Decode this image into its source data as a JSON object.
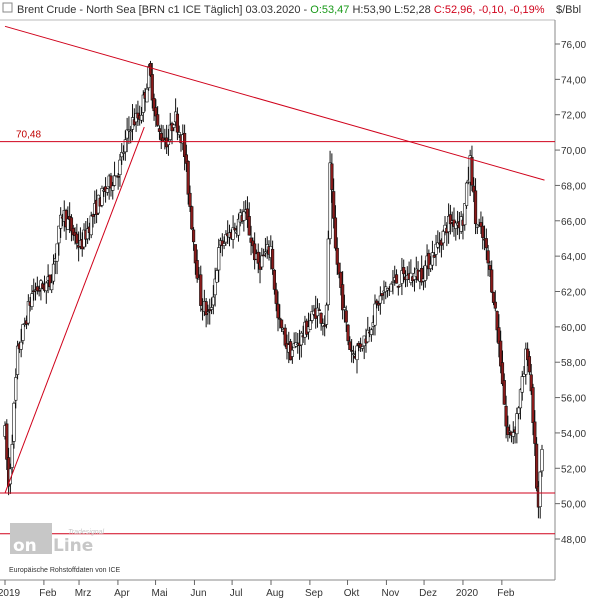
{
  "header": {
    "instrument": "Brent Crude - North Sea [BRN c1 ICE  Täglich] 03.03.2020",
    "open": "O:53,47",
    "high": "H:53,90",
    "low": "L:52,28",
    "close": "C:52,96",
    "change": "-0,10",
    "change_pct": "-0,19%",
    "unit": "$/Bbl"
  },
  "source_note": "Europäische Rohstoffdaten von ICE",
  "watermark": {
    "brand_on": "on",
    "brand_line": "Line",
    "brand_top": "Tradesignal"
  },
  "colors": {
    "up": "#ffffff",
    "down": "#8b1a1a",
    "line": "#d0021b",
    "candle_edge": "#111111",
    "grid": "#e6e6e6"
  },
  "chart_data": {
    "type": "candlestick",
    "title": "Brent Crude - North Sea",
    "x_labels": [
      "2019",
      "Feb",
      "Mrz",
      "Apr",
      "Mai",
      "Jun",
      "Jul",
      "Aug",
      "Sep",
      "Okt",
      "Nov",
      "Dez",
      "2020",
      "Feb"
    ],
    "x_label_days": [
      0,
      31,
      59,
      90,
      120,
      151,
      181,
      212,
      243,
      273,
      304,
      334,
      365,
      396
    ],
    "y_ticks": [
      "76,00",
      "74,00",
      "72,00",
      "70,00",
      "68,00",
      "66,00",
      "64,00",
      "62,00",
      "60,00",
      "58,00",
      "56,00",
      "54,00",
      "52,00",
      "50,00",
      "48,00"
    ],
    "ylim": [
      46.9,
      77.2
    ],
    "grid": false,
    "horizontal_levels": [
      {
        "label": "70,48",
        "value": 70.48
      },
      {
        "label": "",
        "value": 50.6
      },
      {
        "label": "",
        "value": 48.3
      }
    ],
    "trendlines": [
      {
        "from": [
          "2018-12-31",
          77.0
        ],
        "to": [
          "2020-03-05",
          68.3
        ]
      },
      {
        "from": [
          "2018-12-31",
          50.6
        ],
        "to": [
          "2019-04-21",
          71.3
        ]
      }
    ],
    "price_anchors": [
      [
        "2018-12-31",
        54.0
      ],
      [
        "2019-01-03",
        50.8
      ],
      [
        "2019-01-10",
        58.5
      ],
      [
        "2019-01-22",
        62.0
      ],
      [
        "2019-02-05",
        62.5
      ],
      [
        "2019-02-15",
        66.5
      ],
      [
        "2019-03-01",
        64.5
      ],
      [
        "2019-03-15",
        67.0
      ],
      [
        "2019-04-01",
        69.0
      ],
      [
        "2019-04-10",
        71.5
      ],
      [
        "2019-04-18",
        72.0
      ],
      [
        "2019-04-25",
        74.5
      ],
      [
        "2019-05-02",
        71.0
      ],
      [
        "2019-05-10",
        70.5
      ],
      [
        "2019-05-15",
        72.0
      ],
      [
        "2019-05-22",
        70.5
      ],
      [
        "2019-05-31",
        64.5
      ],
      [
        "2019-06-05",
        61.5
      ],
      [
        "2019-06-12",
        60.5
      ],
      [
        "2019-06-20",
        64.5
      ],
      [
        "2019-07-01",
        65.5
      ],
      [
        "2019-07-10",
        66.5
      ],
      [
        "2019-07-20",
        63.5
      ],
      [
        "2019-07-31",
        64.5
      ],
      [
        "2019-08-05",
        60.5
      ],
      [
        "2019-08-15",
        58.5
      ],
      [
        "2019-08-25",
        59.5
      ],
      [
        "2019-09-05",
        61.0
      ],
      [
        "2019-09-13",
        60.2
      ],
      [
        "2019-09-16",
        69.0
      ],
      [
        "2019-09-20",
        64.5
      ],
      [
        "2019-10-01",
        59.0
      ],
      [
        "2019-10-05",
        58.5
      ],
      [
        "2019-10-15",
        59.5
      ],
      [
        "2019-10-25",
        61.5
      ],
      [
        "2019-11-05",
        62.5
      ],
      [
        "2019-11-15",
        62.8
      ],
      [
        "2019-11-28",
        63.0
      ],
      [
        "2019-12-10",
        64.5
      ],
      [
        "2019-12-20",
        66.0
      ],
      [
        "2019-12-31",
        66.0
      ],
      [
        "2020-01-06",
        69.5
      ],
      [
        "2020-01-10",
        66.0
      ],
      [
        "2020-01-17",
        64.8
      ],
      [
        "2020-01-24",
        62.0
      ],
      [
        "2020-01-31",
        57.5
      ],
      [
        "2020-02-04",
        53.8
      ],
      [
        "2020-02-10",
        54.2
      ],
      [
        "2020-02-18",
        57.5
      ],
      [
        "2020-02-20",
        59.0
      ],
      [
        "2020-02-24",
        56.0
      ],
      [
        "2020-02-27",
        52.0
      ],
      [
        "2020-02-29",
        49.5
      ],
      [
        "2020-03-03",
        52.96
      ]
    ],
    "candle_count": 300
  }
}
